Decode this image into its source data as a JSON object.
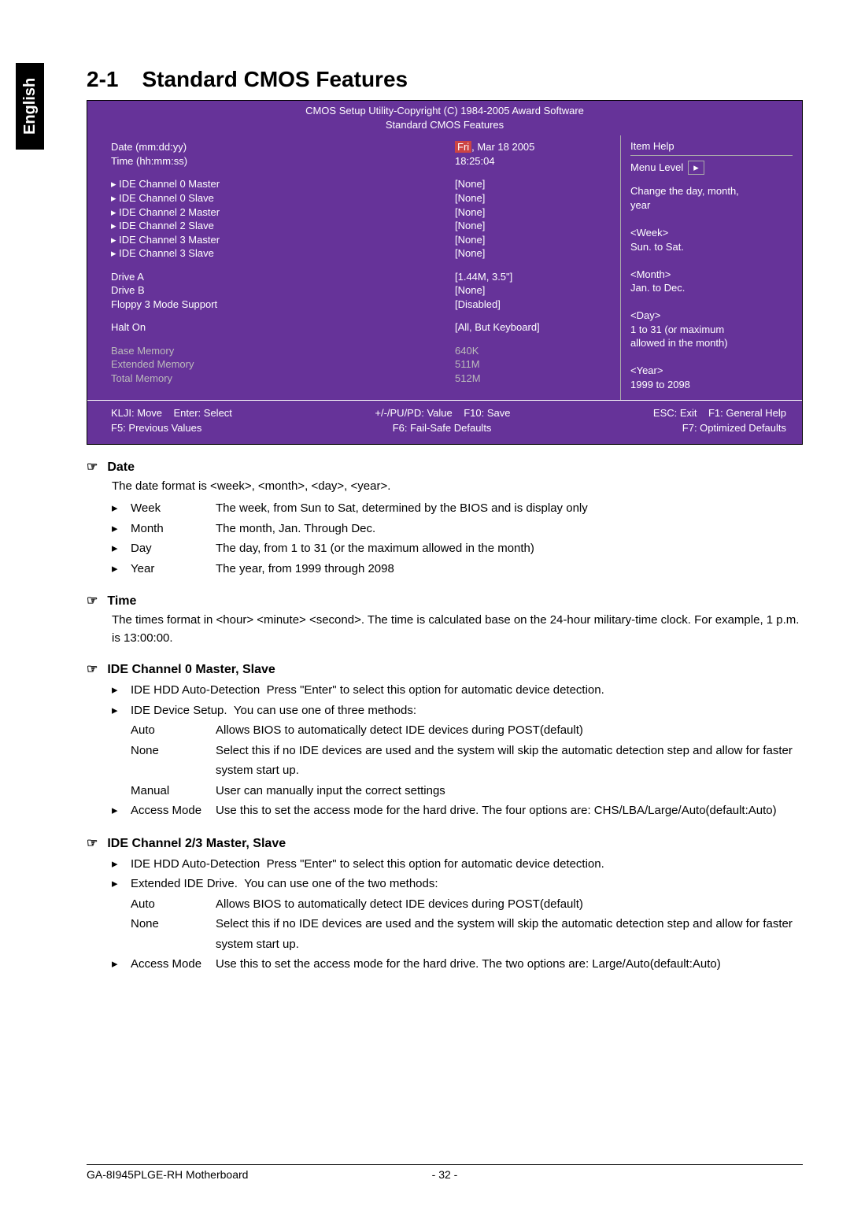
{
  "language_tab": "English",
  "section": {
    "number": "2-1",
    "title": "Standard CMOS Features"
  },
  "bios": {
    "header1": "CMOS Setup Utility-Copyright (C) 1984-2005 Award Software",
    "header2": "Standard CMOS Features",
    "rows": [
      {
        "label": "Date (mm:dd:yy)",
        "value_prefix": "Fri",
        "value_rest": ", Mar  18 2005",
        "hl": true
      },
      {
        "label": "Time (hh:mm:ss)",
        "value": "18:25:04"
      }
    ],
    "ide": [
      {
        "label": "IDE Channel 0 Master",
        "value": "[None]"
      },
      {
        "label": "IDE Channel 0 Slave",
        "value": "[None]"
      },
      {
        "label": "IDE Channel 2 Master",
        "value": "[None]"
      },
      {
        "label": "IDE Channel 2 Slave",
        "value": "[None]"
      },
      {
        "label": "IDE Channel 3 Master",
        "value": "[None]"
      },
      {
        "label": "IDE Channel 3 Slave",
        "value": "[None]"
      }
    ],
    "drives": [
      {
        "label": "Drive A",
        "value": "[1.44M, 3.5\"]"
      },
      {
        "label": "Drive B",
        "value": "[None]"
      },
      {
        "label": "Floppy 3 Mode Support",
        "value": "[Disabled]"
      }
    ],
    "halt": {
      "label": "Halt On",
      "value": "[All, But Keyboard]"
    },
    "memory": [
      {
        "label": "Base Memory",
        "value": "640K"
      },
      {
        "label": "Extended Memory",
        "value": "511M"
      },
      {
        "label": "Total Memory",
        "value": "512M"
      }
    ],
    "help": {
      "title": "Item Help",
      "level": "Menu Level",
      "lines": [
        "Change the day, month,",
        "year",
        "",
        "<Week>",
        "Sun. to Sat.",
        "",
        "<Month>",
        "Jan. to Dec.",
        "",
        "<Day>",
        "1 to 31 (or maximum",
        "allowed in the month)",
        "",
        "<Year>",
        "1999 to 2098"
      ]
    },
    "footer": {
      "l1a": "KLJI: Move",
      "l1b": "Enter: Select",
      "l1c": "+/-/PU/PD: Value",
      "l1d": "F10: Save",
      "l1e": "ESC: Exit",
      "l1f": "F1: General Help",
      "l2a": "F5: Previous Values",
      "l2b": "F6: Fail-Safe Defaults",
      "l2c": "F7: Optimized Defaults"
    }
  },
  "doc": {
    "date": {
      "title": "Date",
      "desc": "The date format is <week>, <month>, <day>, <year>.",
      "items": [
        {
          "key": "Week",
          "text": "The week, from Sun to Sat, determined by the BIOS and is display only"
        },
        {
          "key": "Month",
          "text": "The month, Jan. Through Dec."
        },
        {
          "key": "Day",
          "text": "The day, from 1 to 31 (or the maximum allowed in the month)"
        },
        {
          "key": "Year",
          "text": "The year, from 1999 through 2098"
        }
      ]
    },
    "time": {
      "title": "Time",
      "desc": "The times format in <hour> <minute> <second>. The time is calculated base on the 24-hour military-time clock. For example, 1 p.m. is 13:00:00."
    },
    "ide0": {
      "title": "IDE Channel 0 Master, Slave",
      "auto_detect": {
        "key": "IDE HDD Auto-Detection",
        "text": "Press \"Enter\" to select this option for automatic device detection."
      },
      "setup": {
        "key": "IDE Device Setup.",
        "text": "You can use one of three methods:"
      },
      "options": [
        {
          "key": "Auto",
          "text": "Allows BIOS to automatically detect IDE devices during POST(default)"
        },
        {
          "key": "None",
          "text": "Select this if no IDE devices are used and the system will skip the automatic detection step and allow for faster system start up."
        },
        {
          "key": "Manual",
          "text": "User can manually input the correct settings"
        }
      ],
      "access": {
        "key": "Access Mode",
        "text": "Use this to set the access mode for the hard drive. The four options are: CHS/LBA/Large/Auto(default:Auto)"
      }
    },
    "ide23": {
      "title": "IDE Channel 2/3 Master, Slave",
      "auto_detect": {
        "key": "IDE HDD Auto-Detection",
        "text": "Press \"Enter\" to select this option for automatic device detection."
      },
      "setup": {
        "key": "Extended IDE Drive.",
        "text": "You can use one of the two methods:"
      },
      "options": [
        {
          "key": "Auto",
          "text": "Allows BIOS to automatically detect IDE devices during POST(default)"
        },
        {
          "key": "None",
          "text": "Select this if no IDE devices are used and the system will skip the automatic detection step and allow for faster system start up."
        }
      ],
      "access": {
        "key": "Access Mode",
        "text": "Use this to set the access mode for the hard drive. The two options are: Large/Auto(default:Auto)"
      }
    }
  },
  "page_footer": {
    "left": "GA-8I945PLGE-RH Motherboard",
    "page": "- 32 -"
  }
}
